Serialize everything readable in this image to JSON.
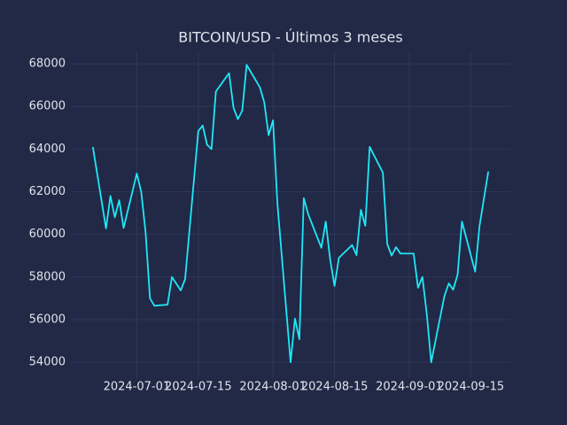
{
  "chart_data": {
    "type": "line",
    "title": "BITCOIN/USD - Últimos 3 meses",
    "x": [
      "2024-06-21",
      "2024-06-24",
      "2024-06-25",
      "2024-06-26",
      "2024-06-27",
      "2024-06-28",
      "2024-07-01",
      "2024-07-02",
      "2024-07-03",
      "2024-07-04",
      "2024-07-05",
      "2024-07-08",
      "2024-07-09",
      "2024-07-11",
      "2024-07-12",
      "2024-07-15",
      "2024-07-16",
      "2024-07-17",
      "2024-07-18",
      "2024-07-19",
      "2024-07-22",
      "2024-07-23",
      "2024-07-24",
      "2024-07-25",
      "2024-07-26",
      "2024-07-29",
      "2024-07-30",
      "2024-07-31",
      "2024-08-01",
      "2024-08-02",
      "2024-08-05",
      "2024-08-06",
      "2024-08-07",
      "2024-08-08",
      "2024-08-09",
      "2024-08-12",
      "2024-08-13",
      "2024-08-14",
      "2024-08-15",
      "2024-08-16",
      "2024-08-19",
      "2024-08-20",
      "2024-08-21",
      "2024-08-22",
      "2024-08-23",
      "2024-08-26",
      "2024-08-27",
      "2024-08-28",
      "2024-08-29",
      "2024-08-30",
      "2024-09-02",
      "2024-09-03",
      "2024-09-04",
      "2024-09-05",
      "2024-09-06",
      "2024-09-09",
      "2024-09-10",
      "2024-09-11",
      "2024-09-12",
      "2024-09-13",
      "2024-09-16",
      "2024-09-17",
      "2024-09-19"
    ],
    "series": [
      {
        "color": "#1ee8f8",
        "values": [
          64100,
          60280,
          61800,
          60800,
          61600,
          60300,
          62850,
          62000,
          60100,
          57000,
          56650,
          56700,
          58000,
          57370,
          57900,
          64850,
          65100,
          64200,
          64000,
          66700,
          67560,
          65950,
          65400,
          65800,
          67950,
          66900,
          66200,
          64650,
          65350,
          61450,
          54000,
          56050,
          55080,
          61700,
          60950,
          59370,
          60600,
          58830,
          57580,
          58900,
          59500,
          59030,
          61150,
          60400,
          64100,
          62900,
          59550,
          59000,
          59400,
          59100,
          59100,
          57500,
          58000,
          56250,
          54000,
          57100,
          57700,
          57400,
          58100,
          60600,
          58250,
          60400,
          62950
        ]
      }
    ],
    "xlim": [
      "2024-06-16",
      "2024-09-24"
    ],
    "xticks": [
      "2024-07-01",
      "2024-07-15",
      "2024-08-01",
      "2024-08-15",
      "2024-09-01",
      "2024-09-15"
    ],
    "ylim": [
      53250,
      68600
    ],
    "yticks": [
      54000,
      56000,
      58000,
      60000,
      62000,
      64000,
      66000,
      68000
    ],
    "grid": true
  }
}
